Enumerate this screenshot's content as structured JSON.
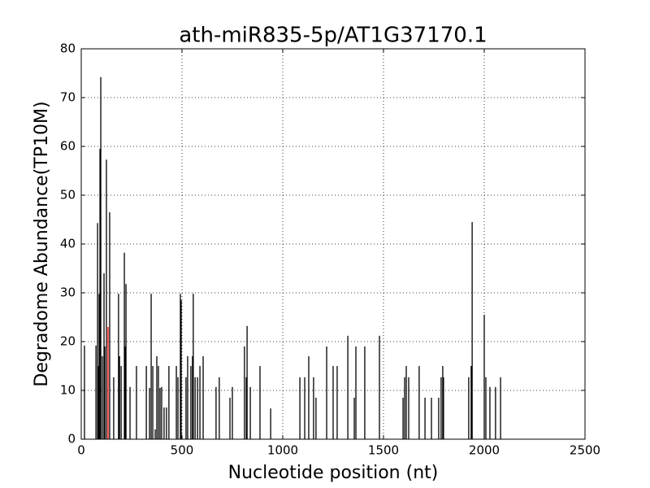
{
  "chart_data": {
    "type": "stem",
    "title": "ath-miR835-5p/AT1G37170.1",
    "x_label": "Nucleotide position (nt)",
    "y_label": "Degradome Abundance(TP10M)",
    "x": [
      16,
      73,
      81,
      85,
      89,
      93,
      97,
      105,
      113,
      117,
      125,
      141,
      161,
      185,
      190,
      198,
      214,
      218,
      222,
      242,
      274,
      323,
      339,
      347,
      355,
      367,
      375,
      383,
      391,
      399,
      411,
      423,
      435,
      472,
      480,
      492,
      496,
      520,
      528,
      544,
      552,
      556,
      565,
      577,
      589,
      605,
      669,
      685,
      738,
      750,
      810,
      819,
      823,
      839,
      887,
      940,
      1085,
      1109,
      1129,
      1153,
      1165,
      1218,
      1250,
      1270,
      1323,
      1355,
      1363,
      1407,
      1480,
      1597,
      1605,
      1613,
      1625,
      1677,
      1706,
      1738,
      1774,
      1786,
      1794,
      1798,
      1923,
      1935,
      1940,
      2000,
      2008,
      2028,
      2056,
      2081
    ],
    "values": [
      19.2,
      19.2,
      44.3,
      15,
      29.8,
      59.5,
      74.2,
      17,
      34,
      19,
      57.3,
      46.5,
      12.7,
      29.8,
      17,
      15,
      38.2,
      19,
      31.8,
      10.7,
      15,
      15,
      10.5,
      29.8,
      15,
      2,
      17,
      15,
      10.5,
      10.7,
      6.5,
      6.5,
      15,
      15,
      12.7,
      29.8,
      28.5,
      12.7,
      17,
      15,
      17,
      29.8,
      12.7,
      12.7,
      15,
      17,
      10.7,
      12.7,
      8.5,
      10.7,
      19,
      12.7,
      23.2,
      10.7,
      15,
      6.3,
      12.7,
      12.7,
      17,
      12.7,
      8.5,
      19,
      15,
      15,
      21.2,
      8.5,
      19,
      19,
      21.2,
      8.5,
      12.7,
      15,
      12.7,
      15,
      8.5,
      8.5,
      8.5,
      12.7,
      15,
      12.7,
      12.7,
      15,
      44.5,
      25.5,
      12.7,
      10.7,
      10.7,
      12.7
    ],
    "color": "#000000",
    "highlight": {
      "x": [
        133
      ],
      "values": [
        23
      ],
      "color": "#ff0000"
    },
    "xlim": [
      0,
      2500
    ],
    "xticks": [
      0,
      500,
      1000,
      1500,
      2000,
      2500
    ],
    "ylim": [
      0,
      80
    ],
    "yticks": [
      0,
      10,
      20,
      30,
      40,
      50,
      60,
      70,
      80
    ],
    "grid": true
  }
}
